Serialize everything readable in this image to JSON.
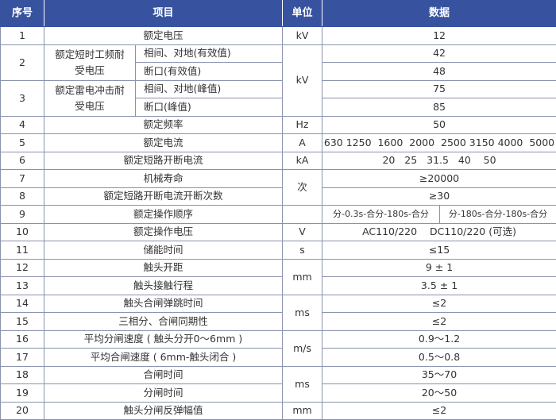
{
  "header": {
    "no": "序号",
    "item": "项目",
    "unit": "单位",
    "data": "数据"
  },
  "rows": [
    {
      "no": "1",
      "item": "额定电压",
      "unit": "kV",
      "data": "12"
    },
    {
      "no": "2",
      "item": "额定短时工频耐受电压",
      "sub": [
        "相间、对地(有效值)",
        "断口(有效值)"
      ],
      "data": [
        "42",
        "48"
      ]
    },
    {
      "no": "3",
      "item": "额定雷电冲击耐受电压",
      "sub": [
        "相间、对地(峰值)",
        "断口(峰值)"
      ],
      "unit": "kV",
      "data": [
        "75",
        "85"
      ]
    },
    {
      "no": "4",
      "item": "额定频率",
      "unit": "Hz",
      "data": "50"
    },
    {
      "no": "5",
      "item": "额定电流",
      "unit": "A",
      "data": "630 1250  1600  2000  2500 3150 4000  5000"
    },
    {
      "no": "6",
      "item": "额定短路开断电流",
      "unit": "kA",
      "data": "20   25   31.5   40    50"
    },
    {
      "no": "7",
      "item": "机械寿命",
      "unit": "次",
      "data": "≥20000"
    },
    {
      "no": "8",
      "item": "额定短路开断电流开断次数",
      "data": "≥30"
    },
    {
      "no": "9",
      "item": "额定操作顺序",
      "unit": "",
      "data": [
        "分-0.3s-合分-180s-合分",
        "分-180s-合分-180s-合分"
      ]
    },
    {
      "no": "10",
      "item": "额定操作电压",
      "unit": "V",
      "data": "AC110/220    DC110/220 (可选)"
    },
    {
      "no": "11",
      "item": "储能时间",
      "unit": "s",
      "data": "≤15"
    },
    {
      "no": "12",
      "item": "触头开距",
      "unit": "mm",
      "data": "9 ± 1"
    },
    {
      "no": "13",
      "item": "触头接触行程",
      "data": "3.5 ± 1"
    },
    {
      "no": "14",
      "item": "触头合闸弹跳时间",
      "unit": "ms",
      "data": "≤2"
    },
    {
      "no": "15",
      "item": "三相分、合闸同期性",
      "data": "≤2"
    },
    {
      "no": "16",
      "item": "平均分闸速度 ( 触头分开0～6mm )",
      "unit": "m/s",
      "data": "0.9～1.2"
    },
    {
      "no": "17",
      "item": "平均合闸速度 ( 6mm-触头闭合 )",
      "data": "0.5～0.8"
    },
    {
      "no": "18",
      "item": "合闸时间",
      "unit": "ms",
      "data": "35～70"
    },
    {
      "no": "19",
      "item": "分闸时间",
      "data": "20～50"
    },
    {
      "no": "20",
      "item": "触头分闸反弹幅值",
      "unit": "mm",
      "data": "≤2"
    }
  ],
  "colors": {
    "header_bg": "#37529f",
    "border": "#8a93ad"
  }
}
